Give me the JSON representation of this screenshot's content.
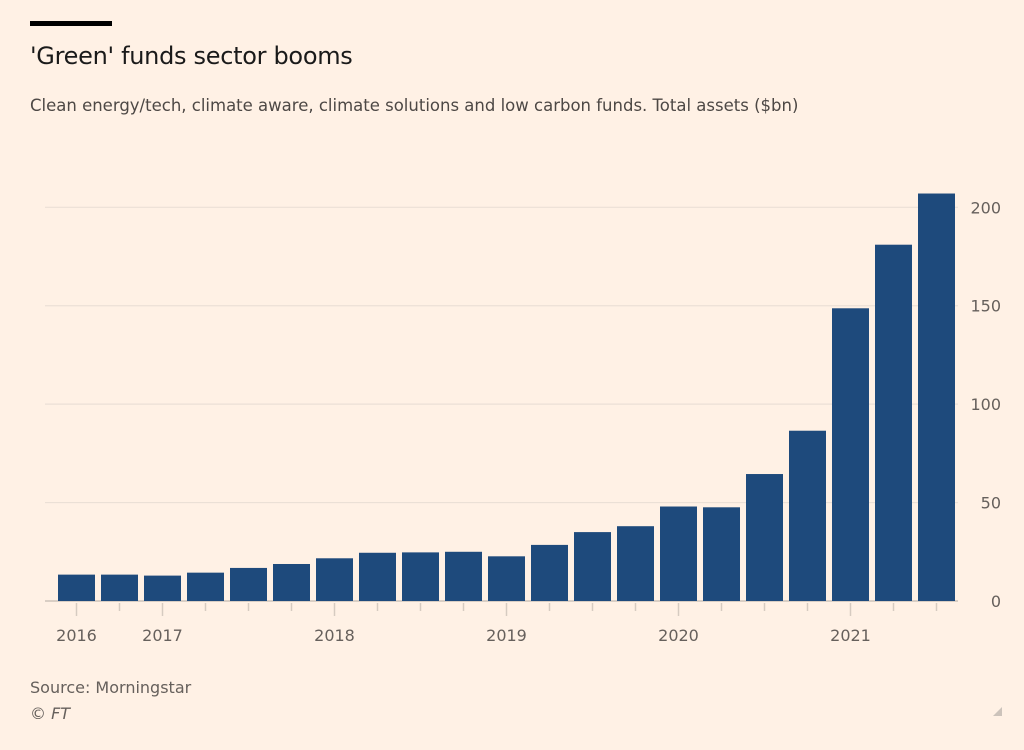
{
  "title": "'Green' funds sector booms",
  "subtitle": "Clean energy/tech, climate aware, climate solutions and low carbon funds. Total assets ($bn)",
  "source": "Source: Morningstar",
  "credit": "© FT",
  "colors": {
    "background": "#fff1e5",
    "bar": "#1e4a7c",
    "grid": "#ebe0d6",
    "axis_text": "#66605c"
  },
  "chart_data": {
    "type": "bar",
    "title": "'Green' funds sector booms",
    "ylabel": "",
    "xlabel": "",
    "ylim": [
      0,
      210
    ],
    "y_ticks": [
      0,
      50,
      100,
      150,
      200
    ],
    "y_axis_side": "right",
    "grid": true,
    "x_tick_labels": [
      {
        "index": 0,
        "label": "2016"
      },
      {
        "index": 2,
        "label": "2017"
      },
      {
        "index": 6,
        "label": "2018"
      },
      {
        "index": 10,
        "label": "2019"
      },
      {
        "index": 14,
        "label": "2020"
      },
      {
        "index": 18,
        "label": "2021"
      }
    ],
    "values": [
      13.4,
      12.9,
      14.4,
      16.8,
      18.8,
      21.7,
      24.5,
      24.7,
      25.0,
      22.7,
      28.5,
      35.0,
      38.0,
      48.0,
      47.6,
      64.5,
      86.5,
      148.7,
      181.0,
      207.0
    ]
  }
}
